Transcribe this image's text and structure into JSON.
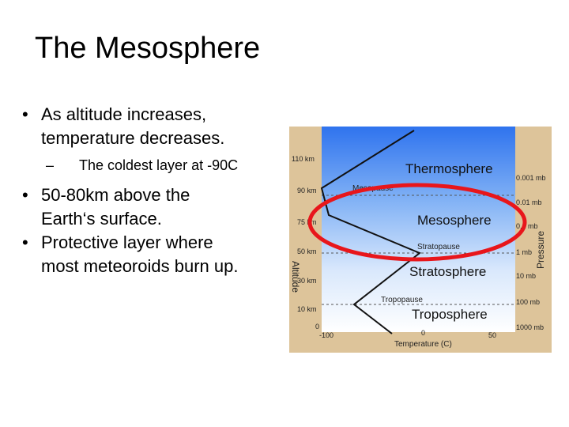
{
  "slide": {
    "title": "The Mesosphere",
    "bullets": [
      {
        "text": "As altitude increases, temperature decreases.",
        "lines": [
          "As altitude increases,",
          "temperature decreases."
        ]
      },
      {
        "sub": "The coldest layer at -90C"
      },
      {
        "text": "50-80km above the Earth‘s surface.",
        "lines": [
          "50-80km above the",
          "Earth‘s surface."
        ]
      },
      {
        "text": "Protective layer where most meteoroids burn up.",
        "lines": [
          "Protective layer where",
          "most meteoroids burn up."
        ]
      }
    ],
    "bullet_char": "•",
    "dash_char": "–"
  },
  "diagram": {
    "layers": {
      "thermosphere": "Thermosphere",
      "mesopause": "Mesopause",
      "mesosphere": "Mesosphere",
      "stratopause": "Stratopause",
      "stratosphere": "Stratosphere",
      "tropopause": "Tropopause",
      "troposphere": "Troposphere"
    },
    "altitude_axis_label": "Altitude",
    "pressure_axis_label": "Pressure",
    "temperature_axis_label": "Temperature (C)",
    "altitude_ticks": [
      "110 km",
      "90 km",
      "75 km",
      "50 km",
      "30 km",
      "10 km",
      "0"
    ],
    "pressure_ticks": [
      "0.001 mb",
      "0.01 mb",
      "0.1 mb",
      "1 mb",
      "10 mb",
      "100 mb",
      "1000 mb"
    ],
    "temperature_ticks": [
      "-100",
      "0",
      "50"
    ],
    "colors": {
      "frame": "#ddc49a",
      "sky_top": "#2f73ee",
      "sky_bottom": "#ffffff",
      "highlight_ring": "#e8161b",
      "boundary_line": "#555555",
      "profile_line": "#111111"
    }
  }
}
